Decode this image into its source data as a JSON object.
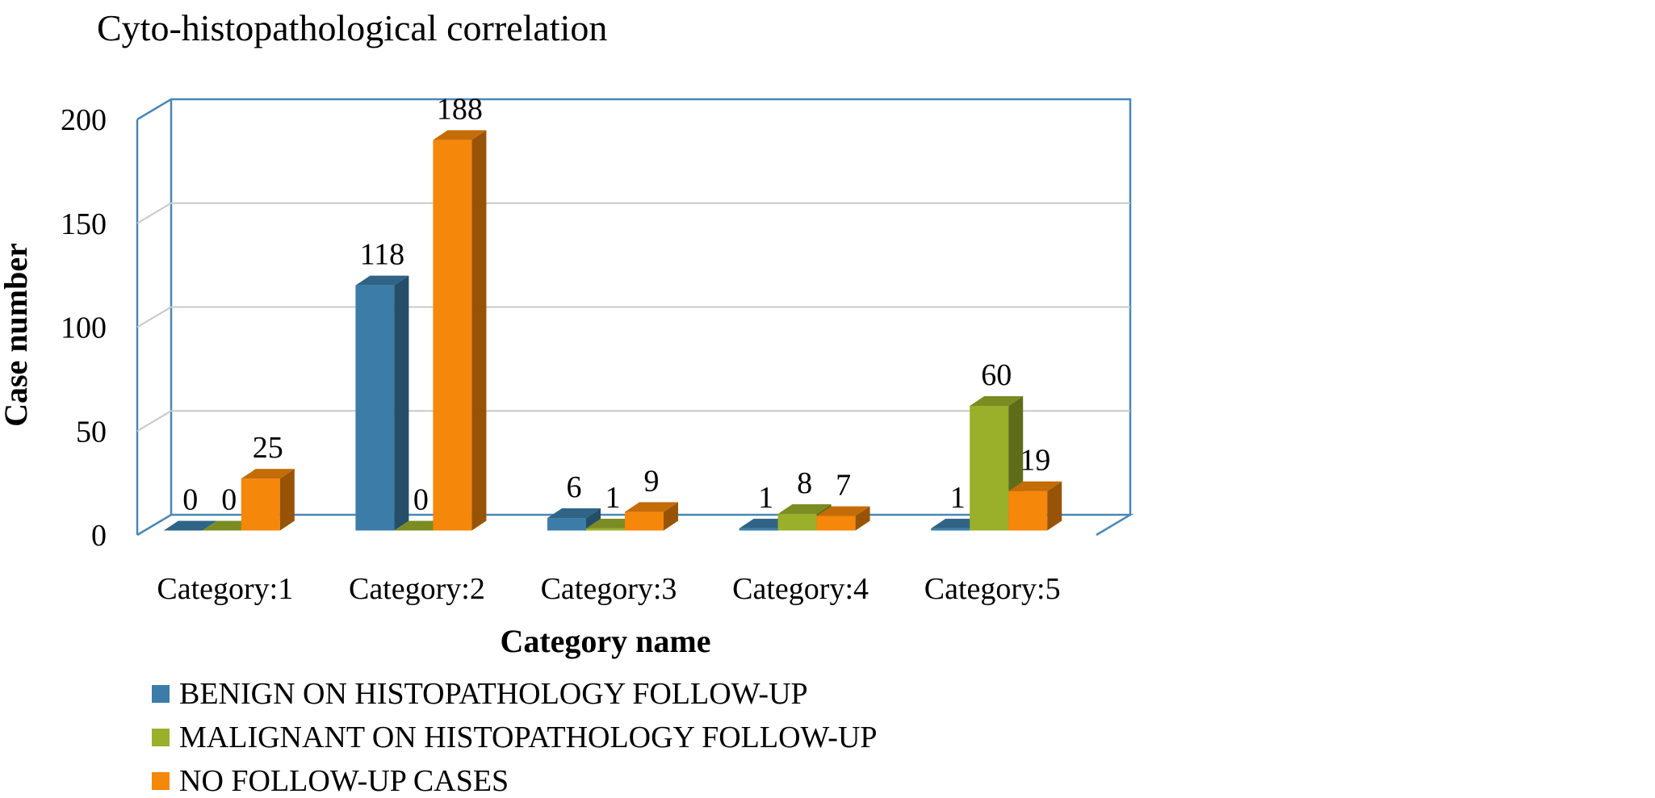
{
  "chart_data": {
    "type": "bar",
    "title": "Cyto-histopathological correlation",
    "xlabel": "Category name",
    "ylabel": "Case number",
    "categories": [
      "Category:1",
      "Category:2",
      "Category:3",
      "Category:4",
      "Category:5"
    ],
    "series": [
      {
        "name": "BENIGN ON HISTOPATHOLOGY FOLLOW-UP",
        "values": [
          0,
          118,
          6,
          1,
          1
        ],
        "color": "#3B7DA8"
      },
      {
        "name": "MALIGNANT ON HISTOPATHOLOGY FOLLOW-UP",
        "values": [
          0,
          0,
          1,
          8,
          60
        ],
        "color": "#9AAF2A"
      },
      {
        "name": "NO FOLLOW-UP CASES",
        "values": [
          25,
          188,
          9,
          7,
          19
        ],
        "color": "#F5870A"
      }
    ],
    "ylim": [
      0,
      200
    ],
    "yticks": [
      0,
      50,
      100,
      150,
      200
    ],
    "grid": true,
    "legend_position": "bottom-left",
    "style": "3d-column"
  }
}
